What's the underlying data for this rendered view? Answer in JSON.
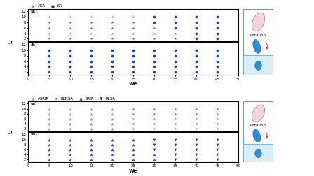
{
  "chart_data": [
    {
      "type": "scatter",
      "legend": "top",
      "y_label": "L",
      "x_label": "We",
      "side_text": "Rotation",
      "panels": [
        {
          "title": "(a)",
          "tick_labels": "y",
          "xlim": [
            0,
            50
          ],
          "xticks": [
            0,
            5,
            10,
            15,
            20,
            25,
            30,
            35,
            40,
            45,
            50
          ],
          "ylim": [
            1,
            13
          ],
          "yticks": [
            2,
            4,
            6,
            8,
            10,
            12
          ],
          "series": [
            {
              "name": "ASR",
              "color": "#e8262a",
              "marker": "star",
              "x": [
                5,
                10,
                15,
                20,
                25,
                30,
                35,
                5,
                10,
                15,
                20,
                25,
                30,
                35,
                5,
                10,
                15,
                20,
                25,
                30,
                5,
                10,
                15,
                20,
                25,
                5,
                10,
                15,
                20,
                25
              ],
              "values": [
                2,
                2,
                2,
                2,
                2,
                2,
                2,
                4,
                4,
                4,
                4,
                4,
                4,
                4,
                6,
                6,
                6,
                6,
                6,
                6,
                8,
                8,
                8,
                8,
                8,
                10,
                10,
                10,
                10,
                10
              ]
            },
            {
              "name": "SR",
              "color": "#1f3fbf",
              "marker": "circle",
              "x": [
                40,
                45,
                40,
                45,
                35,
                40,
                45,
                30,
                35,
                40,
                45,
                30,
                35,
                40,
                45
              ],
              "values": [
                2,
                2,
                4,
                4,
                6,
                6,
                6,
                8,
                8,
                8,
                8,
                10,
                10,
                10,
                10
              ]
            }
          ]
        },
        {
          "title": "(b)",
          "xlim": [
            0,
            50
          ],
          "xticks": [
            0,
            5,
            10,
            15,
            20,
            25,
            30,
            35,
            40,
            45,
            50
          ],
          "ylim": [
            1,
            13
          ],
          "yticks": [
            2,
            4,
            6,
            8,
            10,
            12
          ],
          "series": [
            {
              "name": "SR",
              "color": "#1f3fbf",
              "marker": "circle",
              "x": [
                5,
                10,
                15,
                20,
                25,
                30,
                35,
                40,
                45,
                5,
                10,
                15,
                20,
                25,
                30,
                35,
                40,
                45,
                5,
                10,
                15,
                20,
                25,
                30,
                35,
                40,
                45,
                5,
                10,
                15,
                20,
                25,
                30,
                35,
                40,
                45,
                5,
                10,
                15,
                20,
                25,
                30,
                35,
                40,
                45
              ],
              "values": [
                2,
                2,
                2,
                2,
                2,
                2,
                2,
                2,
                2,
                4,
                4,
                4,
                4,
                4,
                4,
                4,
                4,
                4,
                6,
                6,
                6,
                6,
                6,
                6,
                6,
                6,
                6,
                8,
                8,
                8,
                8,
                8,
                8,
                8,
                8,
                8,
                10,
                10,
                10,
                10,
                10,
                10,
                10,
                10,
                10
              ]
            }
          ]
        }
      ]
    },
    {
      "type": "scatter",
      "legend": "top",
      "y_label": "L",
      "x_label": "We",
      "side_text": "Rotation",
      "panels": [
        {
          "title": "(a)",
          "tick_labels": "y",
          "xlim": [
            0,
            50
          ],
          "xticks": [
            0,
            5,
            10,
            15,
            20,
            25,
            30,
            35,
            40,
            45,
            50
          ],
          "ylim": [
            1,
            13
          ],
          "yticks": [
            2,
            4,
            6,
            8,
            10,
            12
          ],
          "series": [
            {
              "name": "ASRIR",
              "color": "#9a8fd6",
              "marker": "triangle_up",
              "x": [
                5,
                10,
                15,
                20,
                5,
                10,
                15,
                20,
                5,
                10,
                15,
                20,
                5,
                10,
                15,
                20,
                5,
                10,
                15,
                20
              ],
              "values": [
                2,
                2,
                2,
                2,
                4,
                4,
                4,
                4,
                6,
                6,
                6,
                6,
                8,
                8,
                8,
                8,
                10,
                10,
                10,
                10
              ]
            },
            {
              "name": "RLNSR",
              "color": "#e8262a",
              "marker": "star",
              "x": [
                25,
                30,
                35,
                40,
                45,
                25,
                30,
                35,
                40,
                45,
                25,
                30,
                35,
                40,
                45,
                25,
                30,
                35,
                40,
                45,
                25,
                30,
                35,
                40,
                45
              ],
              "values": [
                2,
                2,
                2,
                2,
                2,
                4,
                4,
                4,
                4,
                4,
                6,
                6,
                6,
                6,
                6,
                8,
                8,
                8,
                8,
                8,
                10,
                10,
                10,
                10,
                10
              ]
            }
          ]
        },
        {
          "title": "(b)",
          "xlim": [
            0,
            50
          ],
          "xticks": [
            0,
            5,
            10,
            15,
            20,
            25,
            30,
            35,
            40,
            45,
            50
          ],
          "ylim": [
            1,
            13
          ],
          "yticks": [
            2,
            4,
            6,
            8,
            10,
            12
          ],
          "series": [
            {
              "name": "SRIR",
              "color": "#2a4fd0",
              "marker": "triangle_up",
              "x": [
                5,
                10,
                15,
                20,
                25,
                30,
                5,
                10,
                15,
                20,
                25,
                30,
                5,
                10,
                15,
                20,
                25,
                5,
                10,
                15,
                20,
                25,
                5,
                10,
                15,
                20,
                25
              ],
              "values": [
                2,
                2,
                2,
                2,
                2,
                2,
                4,
                4,
                4,
                4,
                4,
                4,
                6,
                6,
                6,
                6,
                6,
                8,
                8,
                8,
                8,
                8,
                10,
                10,
                10,
                10,
                10
              ]
            },
            {
              "name": "RLSR",
              "color": "#1a2a8a",
              "marker": "triangle_down",
              "x": [
                35,
                40,
                45,
                35,
                40,
                45,
                30,
                35,
                40,
                45,
                30,
                35,
                40,
                45,
                30,
                35,
                40,
                45
              ],
              "values": [
                2,
                2,
                2,
                4,
                4,
                4,
                6,
                6,
                6,
                6,
                8,
                8,
                8,
                8,
                10,
                10,
                10,
                10
              ]
            }
          ]
        }
      ]
    }
  ]
}
